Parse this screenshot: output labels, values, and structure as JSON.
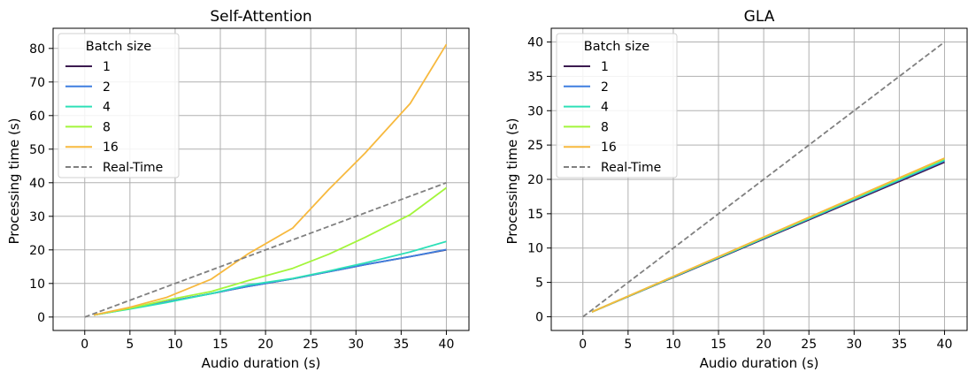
{
  "chart_data": [
    {
      "type": "line",
      "title": "Self-Attention",
      "xlabel": "Audio duration (s)",
      "ylabel": "Processing time (s)",
      "xlim": [
        -3.5,
        42.5
      ],
      "ylim": [
        -4,
        86
      ],
      "xticks": [
        0,
        5,
        10,
        15,
        20,
        25,
        30,
        35,
        40
      ],
      "yticks": [
        0,
        10,
        20,
        30,
        40,
        50,
        60,
        70,
        80
      ],
      "grid": true,
      "legend": {
        "title": "Batch size",
        "position": "top-left"
      },
      "series": [
        {
          "name": "1",
          "color": "#3b1a4f",
          "dashed": false,
          "x": [
            1,
            5,
            9,
            14,
            18,
            23,
            27,
            31,
            36,
            40
          ],
          "y": [
            0.6,
            2.5,
            4.5,
            7.0,
            9.1,
            11.4,
            13.5,
            15.6,
            18.0,
            20.0
          ]
        },
        {
          "name": "2",
          "color": "#3f7fe0",
          "dashed": false,
          "x": [
            1,
            5,
            9,
            14,
            18,
            23,
            27,
            31,
            36,
            40
          ],
          "y": [
            0.6,
            2.5,
            4.5,
            7.0,
            9.1,
            11.4,
            13.5,
            15.6,
            18.0,
            20.1
          ]
        },
        {
          "name": "4",
          "color": "#2ee0b8",
          "dashed": false,
          "x": [
            1,
            5,
            9,
            14,
            18,
            23,
            27,
            31,
            36,
            40
          ],
          "y": [
            0.6,
            2.4,
            4.3,
            7.0,
            9.5,
            11.5,
            13.7,
            16.1,
            19.4,
            22.5
          ]
        },
        {
          "name": "8",
          "color": "#a3f53b",
          "dashed": false,
          "x": [
            1,
            5,
            9,
            14,
            18,
            23,
            27,
            31,
            36,
            40
          ],
          "y": [
            0.6,
            2.6,
            5.0,
            7.6,
            10.8,
            14.5,
            18.7,
            23.7,
            30.5,
            38.5
          ]
        },
        {
          "name": "16",
          "color": "#f7b93e",
          "dashed": false,
          "x": [
            1,
            5,
            9,
            14,
            18,
            23,
            27,
            31,
            36,
            40
          ],
          "y": [
            0.6,
            2.9,
            5.8,
            11.3,
            18.7,
            26.5,
            38.0,
            48.8,
            63.6,
            81.2
          ]
        },
        {
          "name": "Real-Time",
          "color": "#808080",
          "dashed": true,
          "x": [
            0,
            40
          ],
          "y": [
            0,
            40
          ]
        }
      ]
    },
    {
      "type": "line",
      "title": "GLA",
      "xlabel": "Audio duration (s)",
      "ylabel": "Processing time (s)",
      "xlim": [
        -3.5,
        42.5
      ],
      "ylim": [
        -2,
        42
      ],
      "xticks": [
        0,
        5,
        10,
        15,
        20,
        25,
        30,
        35,
        40
      ],
      "yticks": [
        0,
        5,
        10,
        15,
        20,
        25,
        30,
        35,
        40
      ],
      "grid": true,
      "legend": {
        "title": "Batch size",
        "position": "top-left"
      },
      "series": [
        {
          "name": "1",
          "color": "#3b1a4f",
          "dashed": false,
          "x": [
            1,
            40
          ],
          "y": [
            0.7,
            22.5
          ]
        },
        {
          "name": "2",
          "color": "#3f7fe0",
          "dashed": false,
          "x": [
            1,
            40
          ],
          "y": [
            0.7,
            22.7
          ]
        },
        {
          "name": "4",
          "color": "#2ee0b8",
          "dashed": false,
          "x": [
            1,
            40
          ],
          "y": [
            0.7,
            22.8
          ]
        },
        {
          "name": "8",
          "color": "#a3f53b",
          "dashed": false,
          "x": [
            1,
            40
          ],
          "y": [
            0.7,
            23.0
          ]
        },
        {
          "name": "16",
          "color": "#f7b93e",
          "dashed": false,
          "x": [
            1,
            40
          ],
          "y": [
            0.7,
            23.1
          ]
        },
        {
          "name": "Real-Time",
          "color": "#808080",
          "dashed": true,
          "x": [
            0,
            40
          ],
          "y": [
            0,
            40
          ]
        }
      ]
    }
  ]
}
